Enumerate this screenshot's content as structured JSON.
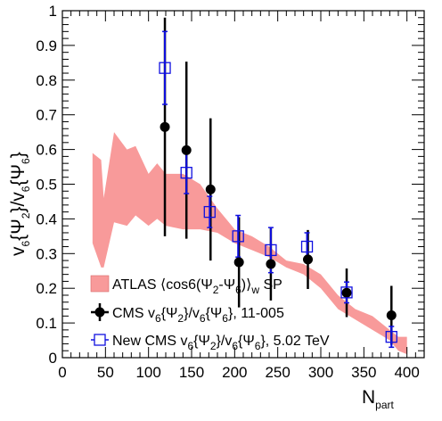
{
  "colors": {
    "atlas_band": "#f89a9a",
    "cms_old": "#000000",
    "cms_new": "#1010e0",
    "axis": "#000000",
    "background": "#ffffff"
  },
  "chart_data": {
    "type": "scatter",
    "title": "",
    "xlabel": {
      "main": "N",
      "sub": "part"
    },
    "ylabel": {
      "parts": [
        "v",
        "6",
        "{Ψ",
        "2",
        "}/v",
        "6",
        "{Ψ",
        "6",
        "}"
      ]
    },
    "xlim": [
      0,
      420
    ],
    "ylim": [
      0,
      1
    ],
    "x_ticks": [
      0,
      50,
      100,
      150,
      200,
      250,
      300,
      350,
      400
    ],
    "x_tick_labels": [
      "0",
      "50",
      "100",
      "150",
      "200",
      "250",
      "300",
      "350",
      "400"
    ],
    "y_ticks": [
      0,
      0.1,
      0.2,
      0.3,
      0.4,
      0.5,
      0.6,
      0.7,
      0.8,
      0.9,
      1
    ],
    "y_tick_labels": [
      "0",
      "0.1",
      "0.2",
      "0.3",
      "0.4",
      "0.5",
      "0.6",
      "0.7",
      "0.8",
      "0.9",
      "1"
    ],
    "grid": false,
    "legend_position": "bottom-left",
    "legend": [
      {
        "series": "atlas",
        "parts": [
          "ATLAS ⟨cos6(Ψ",
          "2",
          "-Ψ",
          "6",
          ")⟩",
          "w",
          " SP"
        ]
      },
      {
        "series": "cms_old",
        "parts": [
          "CMS v",
          "6",
          "{Ψ",
          "2",
          "}/v",
          "6",
          "{Ψ",
          "6",
          "}, 11-005"
        ]
      },
      {
        "series": "cms_new",
        "parts": [
          "New CMS v",
          "6",
          "{Ψ",
          "2",
          "}/v",
          "6",
          "{Ψ",
          "6",
          "}, 5.02 TeV"
        ]
      }
    ],
    "series": [
      {
        "id": "atlas",
        "kind": "band",
        "x": [
          35,
          45,
          48,
          60,
          75,
          85,
          100,
          110,
          120,
          140,
          160,
          180,
          200,
          220,
          240,
          260,
          280,
          300,
          320,
          340,
          360,
          380,
          390,
          400
        ],
        "upper": [
          0.59,
          0.57,
          0.46,
          0.65,
          0.6,
          0.61,
          0.53,
          0.56,
          0.53,
          0.53,
          0.5,
          0.43,
          0.37,
          0.35,
          0.32,
          0.28,
          0.27,
          0.24,
          0.18,
          0.14,
          0.12,
          0.08,
          0.06,
          0.06
        ],
        "lower": [
          0.33,
          0.26,
          0.26,
          0.39,
          0.38,
          0.41,
          0.38,
          0.4,
          0.38,
          0.37,
          0.37,
          0.36,
          0.33,
          0.31,
          0.29,
          0.26,
          0.24,
          0.2,
          0.14,
          0.11,
          0.08,
          0.05,
          0.02,
          0.01
        ]
      },
      {
        "id": "cms_old",
        "kind": "points",
        "marker": "filled-circle",
        "x": [
          119,
          144,
          172,
          205,
          242,
          285,
          330,
          382
        ],
        "y": [
          0.665,
          0.598,
          0.485,
          0.275,
          0.27,
          0.283,
          0.187,
          0.122
        ],
        "yerr": [
          0.315,
          0.255,
          0.205,
          0.13,
          0.105,
          0.085,
          0.07,
          0.085
        ]
      },
      {
        "id": "cms_new",
        "kind": "points",
        "marker": "open-square",
        "x": [
          119,
          144,
          171,
          204,
          242,
          284,
          330,
          382
        ],
        "y": [
          0.835,
          0.533,
          0.42,
          0.35,
          0.31,
          0.32,
          0.188,
          0.06
        ],
        "yerr": [
          0.105,
          0.06,
          0.045,
          0.06,
          0.065,
          0.04,
          0.03,
          0.03
        ]
      }
    ]
  }
}
